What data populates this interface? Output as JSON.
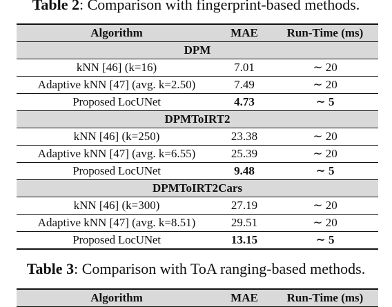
{
  "table2": {
    "caption_label": "Table 2",
    "caption_text": ": Comparison with fingerprint-based methods.",
    "headers": [
      "Algorithm",
      "MAE",
      "Run-Time (ms)"
    ],
    "groups": [
      {
        "name": "DPM",
        "rows": [
          {
            "algorithm": "kNN [46] (k=16)",
            "mae": "7.01",
            "runtime": "∼ 20",
            "best": false
          },
          {
            "algorithm": "Adaptive kNN [47] (avg. k=2.50)",
            "mae": "7.49",
            "runtime": "∼ 20",
            "best": false
          },
          {
            "algorithm": "Proposed LocUNet",
            "mae": "4.73",
            "runtime": "∼ 5",
            "best": true
          }
        ]
      },
      {
        "name": "DPMToIRT2",
        "rows": [
          {
            "algorithm": "kNN [46] (k=250)",
            "mae": "23.38",
            "runtime": "∼ 20",
            "best": false
          },
          {
            "algorithm": "Adaptive kNN [47] (avg. k=6.55)",
            "mae": "25.39",
            "runtime": "∼ 20",
            "best": false
          },
          {
            "algorithm": "Proposed LocUNet",
            "mae": "9.48",
            "runtime": "∼ 5",
            "best": true
          }
        ]
      },
      {
        "name": "DPMToIRT2Cars",
        "rows": [
          {
            "algorithm": "kNN [46] (k=300)",
            "mae": "27.19",
            "runtime": "∼ 20",
            "best": false
          },
          {
            "algorithm": "Adaptive kNN [47] (avg. k=8.51)",
            "mae": "29.51",
            "runtime": "∼ 20",
            "best": false
          },
          {
            "algorithm": "Proposed LocUNet",
            "mae": "13.15",
            "runtime": "∼ 5",
            "best": true
          }
        ]
      }
    ]
  },
  "table3": {
    "caption_label": "Table 3",
    "caption_text": ": Comparison with ToA ranging-based methods.",
    "headers": [
      "Algorithm",
      "MAE",
      "Run-Time (ms)"
    ]
  }
}
